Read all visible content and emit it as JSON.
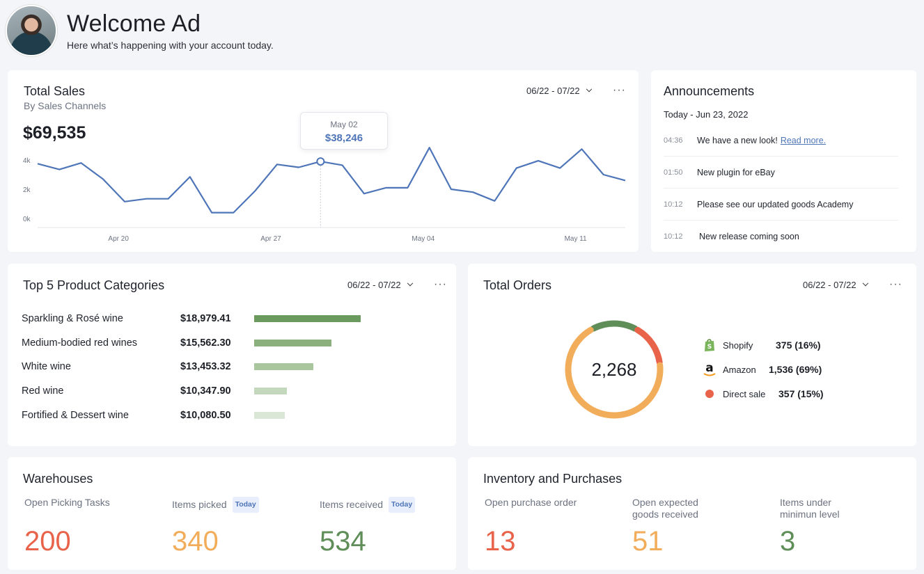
{
  "header": {
    "title": "Welcome Ad",
    "subtitle": "Here what’s happening with your account today."
  },
  "sales": {
    "title": "Total Sales",
    "subtitle": "By Sales Channels",
    "date_range": "06/22 - 07/22",
    "total": "$69,535",
    "tooltip": {
      "date": "May 02",
      "value": "$38,246"
    },
    "chart_data": {
      "type": "line",
      "y_ticks": [
        "4k",
        "2k",
        "0k"
      ],
      "ylim": [
        0,
        4000
      ],
      "x_ticks": [
        "Apr 20",
        "Apr 27",
        "May 04",
        "May 11"
      ],
      "values": [
        3750,
        3350,
        3800,
        2700,
        1150,
        1350,
        1350,
        2850,
        400,
        400,
        1900,
        3700,
        3500,
        3900,
        3650,
        1700,
        2100,
        2100,
        4850,
        2000,
        1800,
        1200,
        3450,
        3950,
        3450,
        4750,
        3000,
        2600
      ],
      "highlight_index": 13,
      "color": "#4e75b8"
    }
  },
  "announcements": {
    "title": "Announcements",
    "date": "Today - Jun 23, 2022",
    "items": [
      {
        "time": "04:36",
        "text": "We have a new look!",
        "link": "Read more."
      },
      {
        "time": "01:50",
        "text": "New plugin for eBay",
        "link": ""
      },
      {
        "time": "10:12",
        "text": "Please see our updated goods Academy",
        "link": ""
      },
      {
        "time": "10:12",
        "text": "New release coming soon",
        "link": ""
      }
    ]
  },
  "categories": {
    "title": "Top 5 Product Categories",
    "date_range": "06/22 - 07/22",
    "chart_data": {
      "type": "bar",
      "categories": [
        "Sparkling & Rosé wine",
        "Medium-bodied red wines",
        "White wine",
        "Red wine",
        "Fortified & Dessert wine"
      ],
      "labels": [
        "$18,979.41",
        "$15,562.30",
        "$13,453.32",
        "$10,347.90",
        "$10,080.50"
      ],
      "values": [
        18979.41,
        15562.3,
        13453.32,
        10347.9,
        10080.5
      ],
      "colors": [
        "#6a9a5e",
        "#8bb07e",
        "#a9c69e",
        "#c4d8bd",
        "#dbe7d6"
      ]
    }
  },
  "orders": {
    "title": "Total Orders",
    "date_range": "06/22 - 07/22",
    "total": "2,268",
    "chart_data": {
      "type": "pie",
      "labels": [
        "Shopify",
        "Amazon",
        "Direct sale"
      ],
      "display": [
        "375 (16%)",
        "1,536 (69%)",
        "357 (15%)"
      ],
      "values": [
        16,
        69,
        15
      ],
      "colors": [
        "#5f8e59",
        "#f2ad5b",
        "#e8634a"
      ]
    },
    "icons": [
      "shopify-icon",
      "amazon-icon",
      "dot-icon"
    ]
  },
  "warehouses": {
    "title": "Warehouses",
    "stats": [
      {
        "label": "Open Picking Tasks",
        "badge": "",
        "value": "200",
        "color": "#e8634a"
      },
      {
        "label": "Items picked",
        "badge": "Today",
        "value": "340",
        "color": "#f2ad5b"
      },
      {
        "label": "Items received",
        "badge": "Today",
        "value": "534",
        "color": "#5f8e59"
      }
    ]
  },
  "inventory": {
    "title": "Inventory and Purchases",
    "stats": [
      {
        "label": "Open purchase order",
        "value": "13",
        "color": "#e8634a"
      },
      {
        "label": "Open expected goods received",
        "value": "51",
        "color": "#f2ad5b"
      },
      {
        "label": "Items under minimun level",
        "value": "3",
        "color": "#5f8e59"
      }
    ]
  }
}
